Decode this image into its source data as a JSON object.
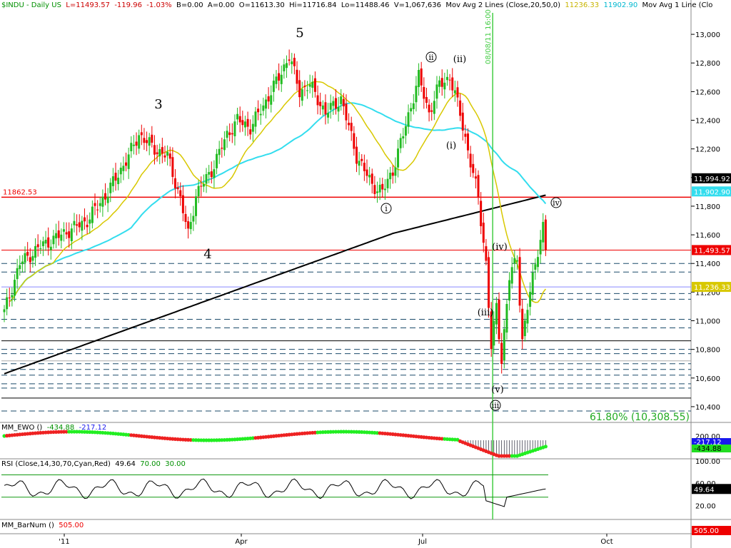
{
  "header": {
    "symbol": "$INDU - Daily  US",
    "last": "L=11493.57",
    "change": "-119.96",
    "change_pct": "-1.03%",
    "bid": "B=0.00",
    "ask": "A=0.00",
    "open": "O=11613.30",
    "high": "Hi=11716.84",
    "low": "Lo=11488.46",
    "volume": "V=1,067,636",
    "ma2_label": "Mov Avg 2 Lines (Close,20,50,0)",
    "ma2_val1": "11236.33",
    "ma2_val2": "11902.90",
    "ma1_label": "Mov Avg 1 Line (Clo"
  },
  "colors": {
    "up": "#22bb22",
    "down": "#ee0000",
    "ma20": "#d8c800",
    "ma50": "#33ddee",
    "ma200": "#000000",
    "resistance": "#ee0000",
    "cursor": "#44cc44",
    "axis_bg": "#ffffff"
  },
  "chart_data": [
    {
      "type": "candlestick",
      "title": "$INDU - Daily US",
      "y_axis_ticks": [
        10400,
        10600,
        10800,
        11000,
        11200,
        11400,
        11600,
        11800,
        12000,
        12200,
        12400,
        12600,
        12800,
        13000
      ],
      "y_tick_labels": [
        "10,400",
        "10,600",
        "10,800",
        "11,000",
        "11,200",
        "11,400",
        "11,600",
        "11,800",
        "12,000",
        "12,200",
        "12,400",
        "12,600",
        "12,800",
        "13,000"
      ],
      "ylim": [
        10300,
        13150
      ],
      "x_tick_labels": [
        "'11",
        "Apr",
        "Jul",
        "Oct"
      ],
      "price_tags": [
        {
          "label": "11,994.92",
          "value": 11994.92,
          "bg": "#000000",
          "fg": "#ffffff"
        },
        {
          "label": "11,902.90",
          "value": 11902.9,
          "bg": "#33ddee",
          "fg": "#ffffff"
        },
        {
          "label": "11,493.57",
          "value": 11493.57,
          "bg": "#ee0000",
          "fg": "#ffffff"
        },
        {
          "label": "11,236.33",
          "value": 11236.33,
          "bg": "#d8c800",
          "fg": "#ffffff"
        }
      ],
      "resistance_label": "11862.53",
      "resistance_value": 11862.53,
      "cursor_date_label": "08/08/11 16:00",
      "fib_label": "61.80% (10,308.55)",
      "wave_labels": [
        {
          "text": "3",
          "style": "plain"
        },
        {
          "text": "4",
          "style": "plain"
        },
        {
          "text": "5",
          "style": "plain"
        },
        {
          "text": "i",
          "style": "circled"
        },
        {
          "text": "ii",
          "style": "circled"
        },
        {
          "text": "(ii)",
          "style": "paren"
        },
        {
          "text": "(i)",
          "style": "paren"
        },
        {
          "text": "(iii)",
          "style": "paren"
        },
        {
          "text": "(iv)",
          "style": "paren"
        },
        {
          "text": "(v)",
          "style": "paren"
        },
        {
          "text": "iii",
          "style": "circled"
        },
        {
          "text": "iv",
          "style": "circled"
        }
      ],
      "ohlc_waypoints": [
        {
          "bar": 0,
          "close": 11060
        },
        {
          "bar": 6,
          "close": 11400
        },
        {
          "bar": 14,
          "close": 11520
        },
        {
          "bar": 24,
          "close": 11620
        },
        {
          "bar": 32,
          "close": 11700
        },
        {
          "bar": 40,
          "close": 11900
        },
        {
          "bar": 48,
          "close": 12150
        },
        {
          "bar": 52,
          "close": 12300
        },
        {
          "bar": 58,
          "close": 12200
        },
        {
          "bar": 63,
          "close": 12150
        },
        {
          "bar": 68,
          "close": 11850
        },
        {
          "bar": 71,
          "close": 11600
        },
        {
          "bar": 74,
          "close": 11880
        },
        {
          "bar": 80,
          "close": 12050
        },
        {
          "bar": 86,
          "close": 12300
        },
        {
          "bar": 90,
          "close": 12400
        },
        {
          "bar": 95,
          "close": 12350
        },
        {
          "bar": 100,
          "close": 12500
        },
        {
          "bar": 106,
          "close": 12700
        },
        {
          "bar": 110,
          "close": 12850
        },
        {
          "bar": 114,
          "close": 12600
        },
        {
          "bar": 118,
          "close": 12650
        },
        {
          "bar": 124,
          "close": 12450
        },
        {
          "bar": 130,
          "close": 12550
        },
        {
          "bar": 136,
          "close": 12150
        },
        {
          "bar": 142,
          "close": 11950
        },
        {
          "bar": 146,
          "close": 11900
        },
        {
          "bar": 150,
          "close": 12050
        },
        {
          "bar": 154,
          "close": 12300
        },
        {
          "bar": 160,
          "close": 12700
        },
        {
          "bar": 164,
          "close": 12450
        },
        {
          "bar": 168,
          "close": 12650
        },
        {
          "bar": 172,
          "close": 12700
        },
        {
          "bar": 176,
          "close": 12450
        },
        {
          "bar": 180,
          "close": 12100
        },
        {
          "bar": 183,
          "close": 11860
        },
        {
          "bar": 186,
          "close": 11400
        },
        {
          "bar": 188,
          "close": 10810
        },
        {
          "bar": 190,
          "close": 11100
        },
        {
          "bar": 192,
          "close": 10730
        },
        {
          "bar": 195,
          "close": 11300
        },
        {
          "bar": 198,
          "close": 11450
        },
        {
          "bar": 200,
          "close": 10860
        },
        {
          "bar": 203,
          "close": 11200
        },
        {
          "bar": 206,
          "close": 11500
        },
        {
          "bar": 208,
          "close": 11650
        },
        {
          "bar": 209,
          "close": 11493.57
        }
      ],
      "bar_count": 210
    },
    {
      "type": "histogram",
      "title": "MM_EWO ()",
      "values_text": [
        "-434.88",
        "-217.12"
      ],
      "y_tick_labels": [
        "200.00"
      ],
      "tags": [
        {
          "label": "-217.12",
          "bg": "#1818ee",
          "fg": "#ffffff"
        },
        {
          "label": "-434.88",
          "bg": "#22dd22",
          "fg": "#000000"
        }
      ]
    },
    {
      "type": "line",
      "title": "RSI (Close,14,30,70,Cyan,Red)",
      "values_text": [
        "49.64",
        "70.00",
        "30.00"
      ],
      "y_tick_labels": [
        "100.00",
        "60.00",
        "20.00"
      ],
      "levels": [
        70,
        30
      ],
      "last": 49.64,
      "tag": {
        "label": "49.64",
        "bg": "#000000",
        "fg": "#ffffff"
      }
    },
    {
      "type": "bar",
      "title": "MM_BarNum ()",
      "values_text": [
        "505.00"
      ],
      "tag": {
        "label": "505.00",
        "bg": "#ee0000",
        "fg": "#ffffff"
      }
    }
  ]
}
